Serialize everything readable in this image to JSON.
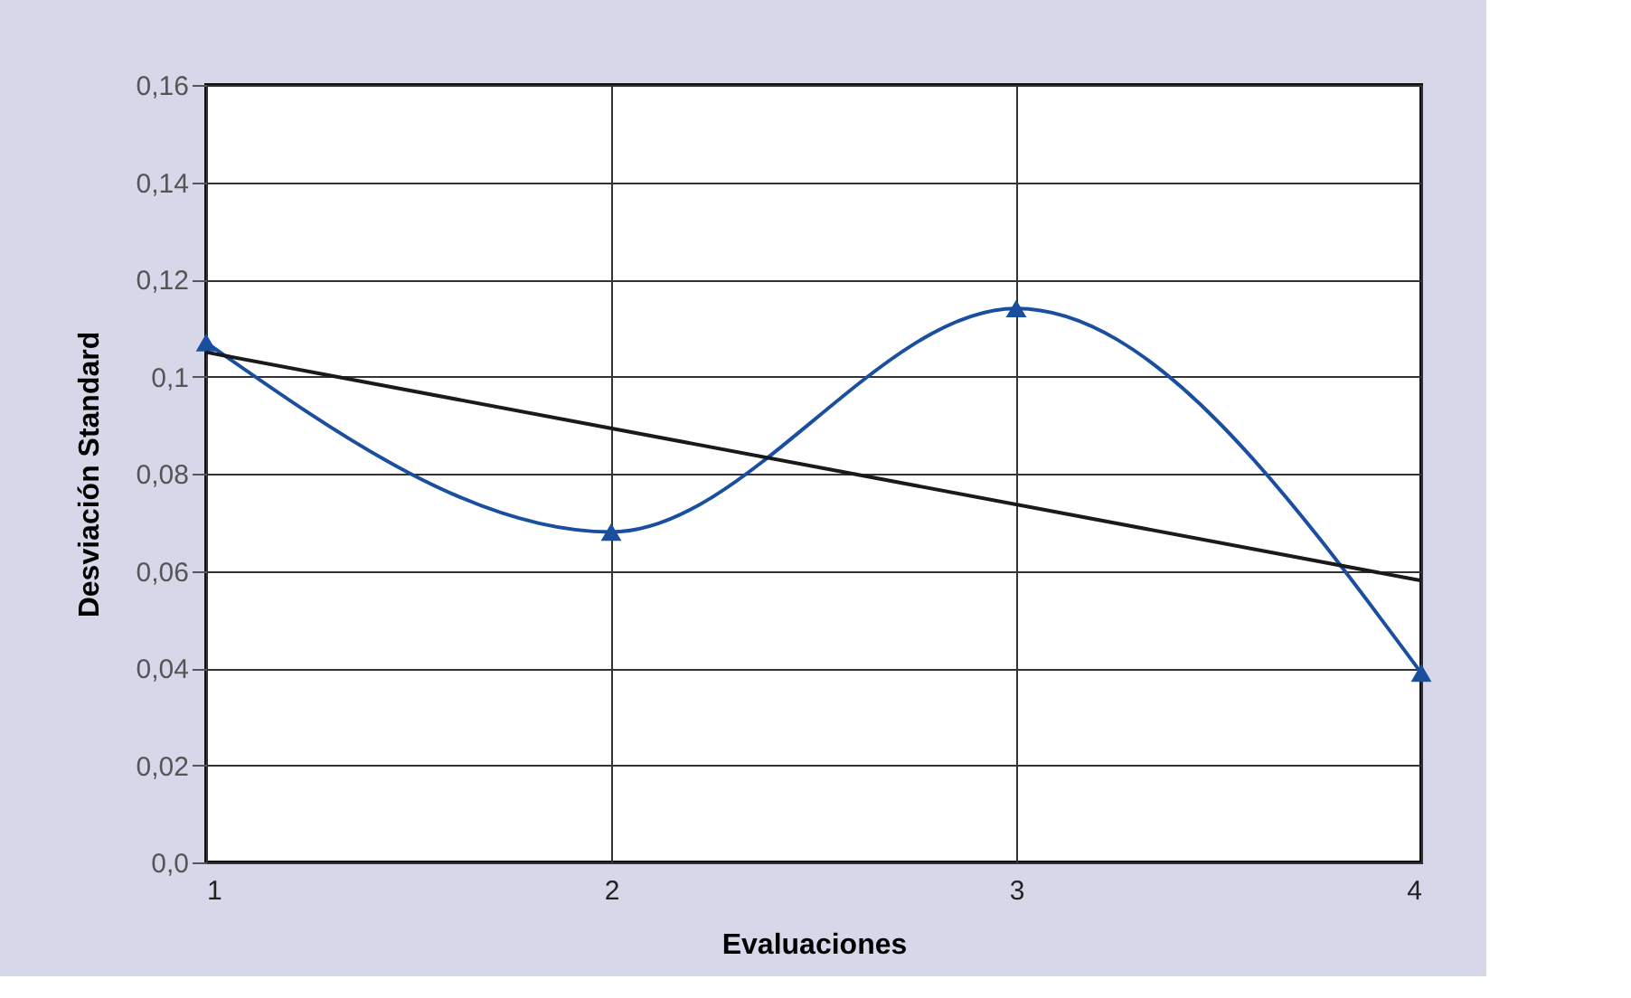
{
  "chart_data": {
    "type": "line",
    "xlabel": "Evaluaciones",
    "ylabel": "Desviación Standard",
    "x": [
      1,
      2,
      3,
      4
    ],
    "xlim": [
      1,
      4
    ],
    "xticks": [
      1,
      2,
      3,
      4
    ],
    "ylim": [
      0,
      0.16
    ],
    "yticks": [
      {
        "value": 0,
        "label": "0,0"
      },
      {
        "value": 0.02,
        "label": "0,02"
      },
      {
        "value": 0.04,
        "label": "0,04"
      },
      {
        "value": 0.06,
        "label": "0,06"
      },
      {
        "value": 0.08,
        "label": "0,08"
      },
      {
        "value": 0.1,
        "label": "0,1"
      },
      {
        "value": 0.12,
        "label": "0,12"
      },
      {
        "value": 0.14,
        "label": "0,14"
      },
      {
        "value": 0.16,
        "label": "0,16"
      }
    ],
    "series": [
      {
        "color": "#1a4fa0",
        "values": [
          0.107,
          0.068,
          0.114,
          0.039
        ],
        "marker": "triangle"
      },
      {
        "color": "#1a1a1a",
        "x": [
          1,
          4
        ],
        "values": [
          0.105,
          0.058
        ],
        "marker": "none"
      }
    ],
    "grid": true,
    "line_style": "solid"
  }
}
